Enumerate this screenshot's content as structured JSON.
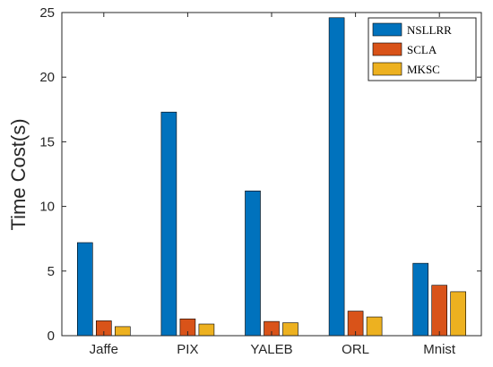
{
  "chart_data": {
    "type": "bar",
    "title": "",
    "xlabel": "",
    "ylabel": "Time Cost(s)",
    "categories": [
      "Jaffe",
      "PIX",
      "YALEB",
      "ORL",
      "Mnist"
    ],
    "series": [
      {
        "name": "NSLLRR",
        "color": "#0072BD",
        "values": [
          7.2,
          17.3,
          11.2,
          24.6,
          5.6
        ]
      },
      {
        "name": "SCLA",
        "color": "#D95319",
        "values": [
          1.15,
          1.3,
          1.1,
          1.9,
          3.9
        ]
      },
      {
        "name": "MKSC",
        "color": "#EDB120",
        "values": [
          0.7,
          0.9,
          1.0,
          1.45,
          3.4
        ]
      }
    ],
    "ylim": [
      0,
      25
    ],
    "yticks": [
      0,
      5,
      10,
      15,
      20,
      25
    ],
    "grid": false,
    "legend_position": "top-right"
  }
}
